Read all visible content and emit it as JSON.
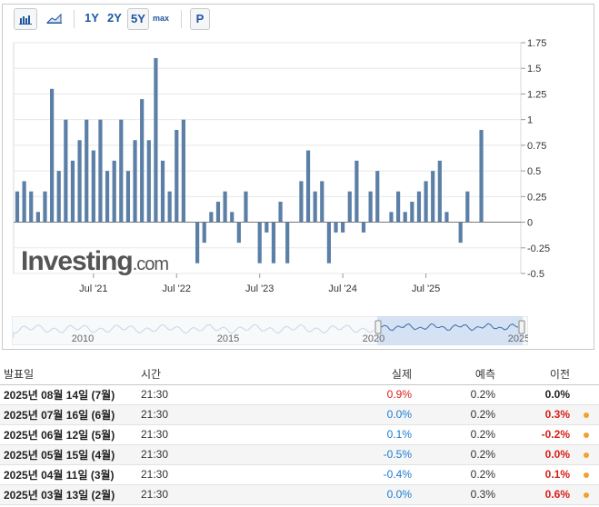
{
  "toolbar": {
    "bar_icon": "bar-chart-icon",
    "area_icon": "area-chart-icon",
    "ranges": [
      "1Y",
      "2Y",
      "5Y",
      "max"
    ],
    "active_range": "5Y",
    "p_button": "P"
  },
  "chart_data": {
    "type": "bar",
    "y_ticks": [
      "1.75",
      "1.5",
      "1.25",
      "1",
      "0.75",
      "0.5",
      "0.25",
      "0",
      "-0.25",
      "-0.5"
    ],
    "ylim": [
      -0.5,
      1.75
    ],
    "x_tick_labels": [
      "Jul '21",
      "Jul '22",
      "Jul '23",
      "Jul '24",
      "Jul '25"
    ],
    "start_month": "2020-08",
    "series": [
      {
        "color": "#5b7fa6",
        "values": [
          0.3,
          0.4,
          0.3,
          0.1,
          0.3,
          1.3,
          0.5,
          1.0,
          0.6,
          0.8,
          1.0,
          0.7,
          1.0,
          0.5,
          0.6,
          1.0,
          0.5,
          0.8,
          1.2,
          0.8,
          1.6,
          0.6,
          0.3,
          0.9,
          1.0,
          null,
          -0.4,
          -0.2,
          0.1,
          0.2,
          0.3,
          0.1,
          -0.2,
          0.3,
          null,
          -0.4,
          -0.1,
          -0.4,
          0.2,
          -0.4,
          null,
          0.4,
          0.7,
          0.3,
          0.4,
          -0.4,
          -0.1,
          -0.1,
          0.3,
          0.6,
          -0.1,
          0.3,
          0.5,
          null,
          0.1,
          0.3,
          0.1,
          0.2,
          0.3,
          0.4,
          0.5,
          0.6,
          0.1,
          null,
          -0.2,
          0.3,
          null,
          0.9
        ]
      }
    ],
    "watermark": "Investing",
    "watermark_suffix": ".com"
  },
  "navigator": {
    "labels": [
      "2010",
      "2015",
      "2020",
      "2025"
    ]
  },
  "table": {
    "headers": {
      "date": "발표일",
      "time": "시간",
      "actual": "실제",
      "forecast": "예측",
      "previous": "이전"
    },
    "rows": [
      {
        "date": "2025년 08월 14일 (7월)",
        "time": "21:30",
        "actual": "0.9%",
        "actual_color": "red",
        "forecast": "0.2%",
        "previous": "0.0%",
        "previous_color": "dark",
        "dot": false
      },
      {
        "date": "2025년 07월 16일 (6월)",
        "time": "21:30",
        "actual": "0.0%",
        "actual_color": "blue",
        "forecast": "0.2%",
        "previous": "0.3%",
        "previous_color": "red",
        "dot": true
      },
      {
        "date": "2025년 06월 12일 (5월)",
        "time": "21:30",
        "actual": "0.1%",
        "actual_color": "blue",
        "forecast": "0.2%",
        "previous": "-0.2%",
        "previous_color": "red",
        "dot": true
      },
      {
        "date": "2025년 05월 15일 (4월)",
        "time": "21:30",
        "actual": "-0.5%",
        "actual_color": "blue",
        "forecast": "0.2%",
        "previous": "0.0%",
        "previous_color": "red",
        "dot": true
      },
      {
        "date": "2025년 04월 11일 (3월)",
        "time": "21:30",
        "actual": "-0.4%",
        "actual_color": "blue",
        "forecast": "0.2%",
        "previous": "0.1%",
        "previous_color": "red",
        "dot": true
      },
      {
        "date": "2025년 03월 13일 (2월)",
        "time": "21:30",
        "actual": "0.0%",
        "actual_color": "blue",
        "forecast": "0.3%",
        "previous": "0.6%",
        "previous_color": "red",
        "dot": true
      }
    ]
  }
}
